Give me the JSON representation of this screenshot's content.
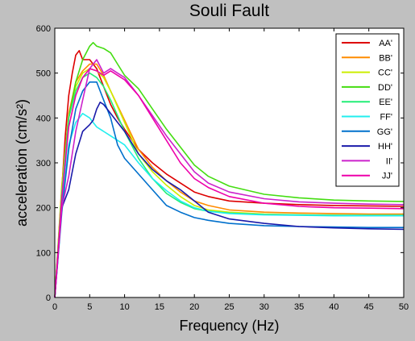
{
  "chart_data": {
    "type": "line",
    "title": "Souli Fault",
    "xlabel": "Frequency (Hz)",
    "ylabel": "acceleration (cm/s²)",
    "xlim": [
      0,
      50
    ],
    "ylim": [
      0,
      600
    ],
    "xticks": [
      0,
      5,
      10,
      15,
      20,
      25,
      30,
      35,
      40,
      45,
      50
    ],
    "yticks": [
      0,
      100,
      200,
      300,
      400,
      500,
      600
    ],
    "grid": false,
    "legend_position": "top-right",
    "series": [
      {
        "name": "AA'",
        "color": "#dd0000",
        "x": [
          0,
          0.8,
          1.5,
          2,
          2.5,
          3,
          3.5,
          4,
          4.5,
          5,
          5.5,
          6,
          7,
          8,
          9,
          10,
          12,
          14,
          16,
          18,
          20,
          22,
          25,
          30,
          35,
          40,
          45,
          50
        ],
        "y": [
          0,
          190,
          360,
          450,
          500,
          540,
          550,
          530,
          530,
          530,
          520,
          510,
          470,
          430,
          400,
          375,
          330,
          300,
          275,
          255,
          235,
          225,
          215,
          210,
          207,
          205,
          204,
          203
        ]
      },
      {
        "name": "BB'",
        "color": "#ff8c00",
        "x": [
          0,
          1,
          2,
          3,
          4,
          5,
          6,
          7,
          8,
          10,
          12,
          14,
          16,
          18,
          20,
          22,
          25,
          30,
          35,
          40,
          45,
          50
        ],
        "y": [
          0,
          250,
          410,
          480,
          505,
          520,
          520,
          495,
          460,
          395,
          330,
          290,
          260,
          235,
          215,
          205,
          195,
          190,
          188,
          187,
          186,
          186
        ]
      },
      {
        "name": "CC'",
        "color": "#ccee00",
        "x": [
          0,
          1,
          2,
          3,
          4,
          5,
          6,
          7,
          8,
          10,
          12,
          14,
          16,
          18,
          20,
          22,
          25,
          30,
          35,
          40,
          45,
          50
        ],
        "y": [
          0,
          240,
          400,
          470,
          500,
          510,
          505,
          490,
          460,
          390,
          320,
          280,
          250,
          225,
          205,
          195,
          190,
          186,
          184,
          183,
          182,
          182
        ]
      },
      {
        "name": "DD'",
        "color": "#44dd11",
        "x": [
          0,
          1,
          2,
          3,
          4,
          5,
          5.5,
          6,
          7,
          8,
          9,
          10,
          11,
          12,
          14,
          16,
          18,
          20,
          22,
          25,
          30,
          35,
          40,
          45,
          50
        ],
        "y": [
          0,
          230,
          400,
          480,
          530,
          560,
          568,
          560,
          555,
          545,
          520,
          495,
          480,
          465,
          420,
          375,
          335,
          295,
          270,
          248,
          230,
          222,
          217,
          215,
          214
        ]
      },
      {
        "name": "EE'",
        "color": "#22ee77",
        "x": [
          0,
          1,
          2,
          3,
          4,
          5,
          6,
          7,
          8,
          10,
          12,
          14,
          16,
          18,
          20,
          22,
          25,
          30,
          35,
          40,
          45,
          50
        ],
        "y": [
          0,
          230,
          400,
          460,
          490,
          500,
          490,
          470,
          440,
          370,
          310,
          265,
          232,
          212,
          198,
          192,
          188,
          185,
          184,
          183,
          183,
          183
        ]
      },
      {
        "name": "FF'",
        "color": "#22eeee",
        "x": [
          0,
          1,
          2,
          3,
          4,
          5,
          5.5,
          6,
          7,
          8,
          10,
          12,
          14,
          16,
          18,
          20,
          22,
          25,
          30,
          35,
          40,
          45,
          50
        ],
        "y": [
          0,
          210,
          340,
          390,
          410,
          400,
          390,
          380,
          370,
          360,
          340,
          300,
          265,
          238,
          215,
          200,
          192,
          187,
          184,
          183,
          182,
          182,
          182
        ]
      },
      {
        "name": "GG'",
        "color": "#0070cc",
        "x": [
          0,
          1,
          2,
          3,
          4,
          5,
          6,
          7,
          8,
          9,
          10,
          12,
          14,
          16,
          18,
          20,
          22,
          25,
          30,
          35,
          40,
          45,
          50
        ],
        "y": [
          0,
          190,
          330,
          420,
          460,
          480,
          480,
          440,
          400,
          340,
          310,
          275,
          240,
          205,
          190,
          178,
          172,
          165,
          160,
          158,
          157,
          156,
          156
        ]
      },
      {
        "name": "HH'",
        "color": "#1a1aaa",
        "x": [
          0,
          1,
          2,
          3,
          4,
          5,
          5.5,
          6,
          6.5,
          7,
          8,
          9,
          10,
          12,
          14,
          16,
          18,
          20,
          22,
          25,
          30,
          35,
          40,
          45,
          50
        ],
        "y": [
          0,
          200,
          240,
          320,
          370,
          385,
          395,
          420,
          435,
          430,
          410,
          390,
          370,
          320,
          285,
          260,
          240,
          215,
          190,
          175,
          165,
          158,
          155,
          153,
          152
        ]
      },
      {
        "name": "II'",
        "color": "#cc22cc",
        "x": [
          0,
          1,
          2,
          3,
          4,
          5,
          6,
          7,
          8,
          9,
          10,
          12,
          14,
          16,
          18,
          20,
          22,
          25,
          30,
          35,
          40,
          45,
          50
        ],
        "y": [
          0,
          200,
          270,
          370,
          440,
          510,
          530,
          500,
          510,
          500,
          490,
          450,
          405,
          360,
          320,
          280,
          255,
          235,
          220,
          213,
          210,
          208,
          207
        ]
      },
      {
        "name": "JJ'",
        "color": "#ee00aa",
        "x": [
          0,
          1,
          2,
          3,
          4,
          5,
          6,
          7,
          8,
          9,
          10,
          12,
          14,
          16,
          18,
          20,
          22,
          25,
          30,
          35,
          40,
          45,
          50
        ],
        "y": [
          0,
          220,
          380,
          450,
          490,
          510,
          505,
          495,
          505,
          495,
          485,
          450,
          400,
          350,
          300,
          265,
          245,
          225,
          210,
          203,
          200,
          199,
          198
        ]
      }
    ]
  }
}
